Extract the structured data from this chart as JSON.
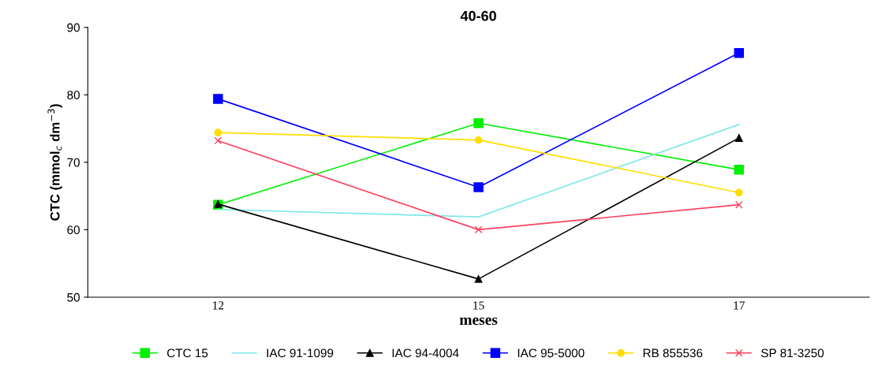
{
  "chart_data": {
    "type": "line",
    "title": "40-60",
    "xlabel": "meses",
    "ylabel": "CTC (mmol$_{c}$ dm$^{−3}$)",
    "categories": [
      "12",
      "15",
      "17"
    ],
    "series": [
      {
        "name": "CTC 15",
        "color": "#00ee00",
        "marker": "square",
        "values": [
          63.7,
          75.8,
          68.9
        ]
      },
      {
        "name": "IAC 91-1099",
        "color": "#80e8e8",
        "marker": "none",
        "values": [
          63.0,
          61.9,
          75.6
        ]
      },
      {
        "name": "IAC 94-4004",
        "color": "#000000",
        "marker": "triangle",
        "values": [
          63.8,
          52.7,
          73.6
        ]
      },
      {
        "name": "IAC 95-5000",
        "color": "#0000ff",
        "marker": "square",
        "values": [
          79.4,
          66.3,
          86.2
        ]
      },
      {
        "name": "RB 855536",
        "color": "#ffdd00",
        "marker": "circle",
        "values": [
          74.4,
          73.3,
          65.5
        ]
      },
      {
        "name": "SP 81-3250",
        "color": "#ff4060",
        "marker": "cross",
        "values": [
          73.2,
          60.0,
          63.7
        ]
      }
    ],
    "ylim": [
      50,
      90
    ],
    "yticks": [
      50,
      60,
      70,
      80,
      90
    ],
    "grid": false,
    "legend": "bottom",
    "line_style": "solid"
  }
}
